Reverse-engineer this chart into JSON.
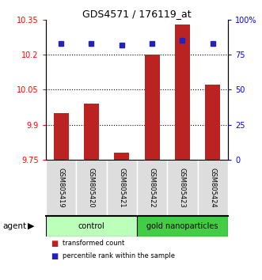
{
  "title": "GDS4571 / 176119_at",
  "samples": [
    "GSM805419",
    "GSM805420",
    "GSM805421",
    "GSM805422",
    "GSM805423",
    "GSM805424"
  ],
  "red_values": [
    9.95,
    9.99,
    9.78,
    10.2,
    10.33,
    10.07
  ],
  "blue_values": [
    83,
    83,
    82,
    83,
    85,
    83
  ],
  "ylim_left": [
    9.75,
    10.35
  ],
  "ylim_right": [
    0,
    100
  ],
  "yticks_left": [
    9.75,
    9.9,
    10.05,
    10.2,
    10.35
  ],
  "ytick_labels_left": [
    "9.75",
    "9.9",
    "10.05",
    "10.2",
    "10.35"
  ],
  "yticks_right": [
    0,
    25,
    50,
    75,
    100
  ],
  "ytick_labels_right": [
    "0",
    "25",
    "50",
    "75",
    "100%"
  ],
  "hlines": [
    9.9,
    10.05,
    10.2
  ],
  "groups": [
    {
      "label": "control",
      "indices": [
        0,
        1,
        2
      ],
      "color": "#bbffbb"
    },
    {
      "label": "gold nanoparticles",
      "indices": [
        3,
        4,
        5
      ],
      "color": "#44cc44"
    }
  ],
  "agent_label": "agent",
  "legend_items": [
    {
      "color": "#bb2222",
      "label": "transformed count"
    },
    {
      "color": "#2222bb",
      "label": "percentile rank within the sample"
    }
  ],
  "bar_color": "#bb2222",
  "dot_color": "#2222bb",
  "bar_bottom": 9.75
}
